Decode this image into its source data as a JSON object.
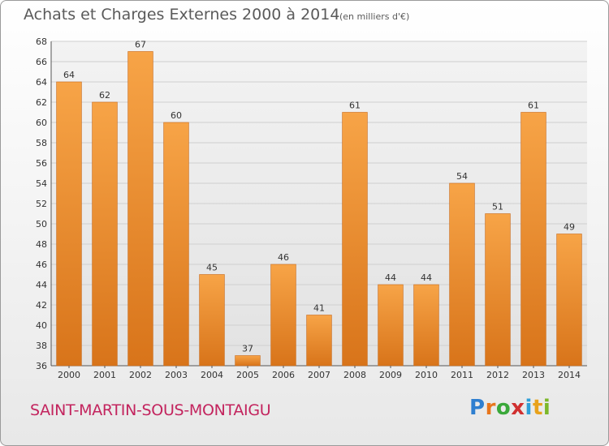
{
  "title": "Achats et Charges Externes 2000 à 2014",
  "subtitle": "(en milliers d'€)",
  "commune": "SAINT-MARTIN-SOUS-MONTAIGU",
  "logo": {
    "letters": [
      "P",
      "r",
      "o",
      "x",
      "i",
      "t",
      "i"
    ],
    "colors": [
      "#2f7fd0",
      "#e8761c",
      "#3aa83a",
      "#d03030",
      "#2f9fd8",
      "#e8a21c",
      "#7cb82a"
    ]
  },
  "chart_data": {
    "type": "bar",
    "categories": [
      "2000",
      "2001",
      "2002",
      "2003",
      "2004",
      "2005",
      "2006",
      "2007",
      "2008",
      "2009",
      "2010",
      "2011",
      "2012",
      "2013",
      "2014"
    ],
    "values": [
      64,
      62,
      67,
      60,
      45,
      37,
      46,
      41,
      61,
      44,
      44,
      54,
      51,
      61,
      49
    ],
    "ylim": [
      36,
      68
    ],
    "yticks": [
      36,
      38,
      40,
      42,
      44,
      46,
      48,
      50,
      52,
      54,
      56,
      58,
      60,
      62,
      64,
      66,
      68
    ],
    "grid": true,
    "bar_color": "#f0922e",
    "xlabel": "",
    "ylabel": ""
  }
}
